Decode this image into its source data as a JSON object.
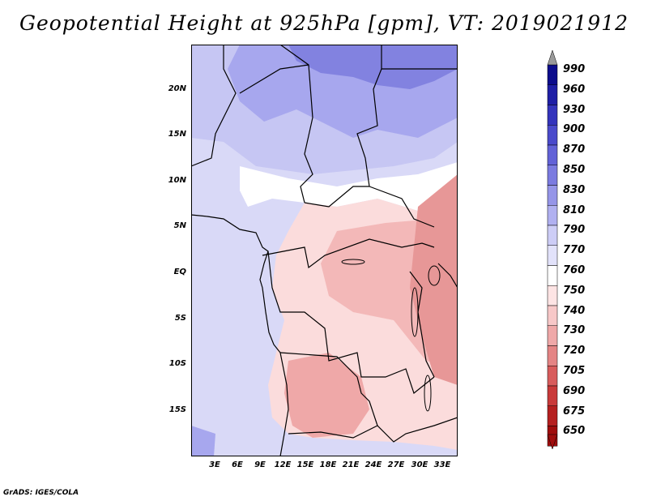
{
  "title": "Geopotential Height at 925hPa [gpm], VT: 2019021912",
  "footer": "GrADS: IGES/COLA",
  "lat_labels": [
    "20N",
    "15N",
    "10N",
    "5N",
    "EQ",
    "5S",
    "10S",
    "15S"
  ],
  "lon_labels": [
    "3E",
    "6E",
    "9E",
    "12E",
    "15E",
    "18E",
    "21E",
    "24E",
    "27E",
    "30E",
    "33E"
  ],
  "colorbar": {
    "labels": [
      "990",
      "960",
      "930",
      "900",
      "870",
      "850",
      "830",
      "810",
      "790",
      "770",
      "760",
      "750",
      "740",
      "730",
      "720",
      "705",
      "690",
      "675",
      "650"
    ],
    "colors": [
      "#0d0d8c",
      "#1f1fa6",
      "#3434bc",
      "#4a4acb",
      "#6262d7",
      "#7b7be0",
      "#9595e8",
      "#b0b0f0",
      "#cdcdf6",
      "#e2e2fa",
      "#ffffff",
      "#fde4e4",
      "#f7c8c8",
      "#efa8a8",
      "#e48484",
      "#d85c5c",
      "#c93a3a",
      "#b52020",
      "#a00d0d"
    ],
    "top_arrow_color": "#9a9a9a",
    "bottom_arrow_color": "#a00d0d"
  }
}
